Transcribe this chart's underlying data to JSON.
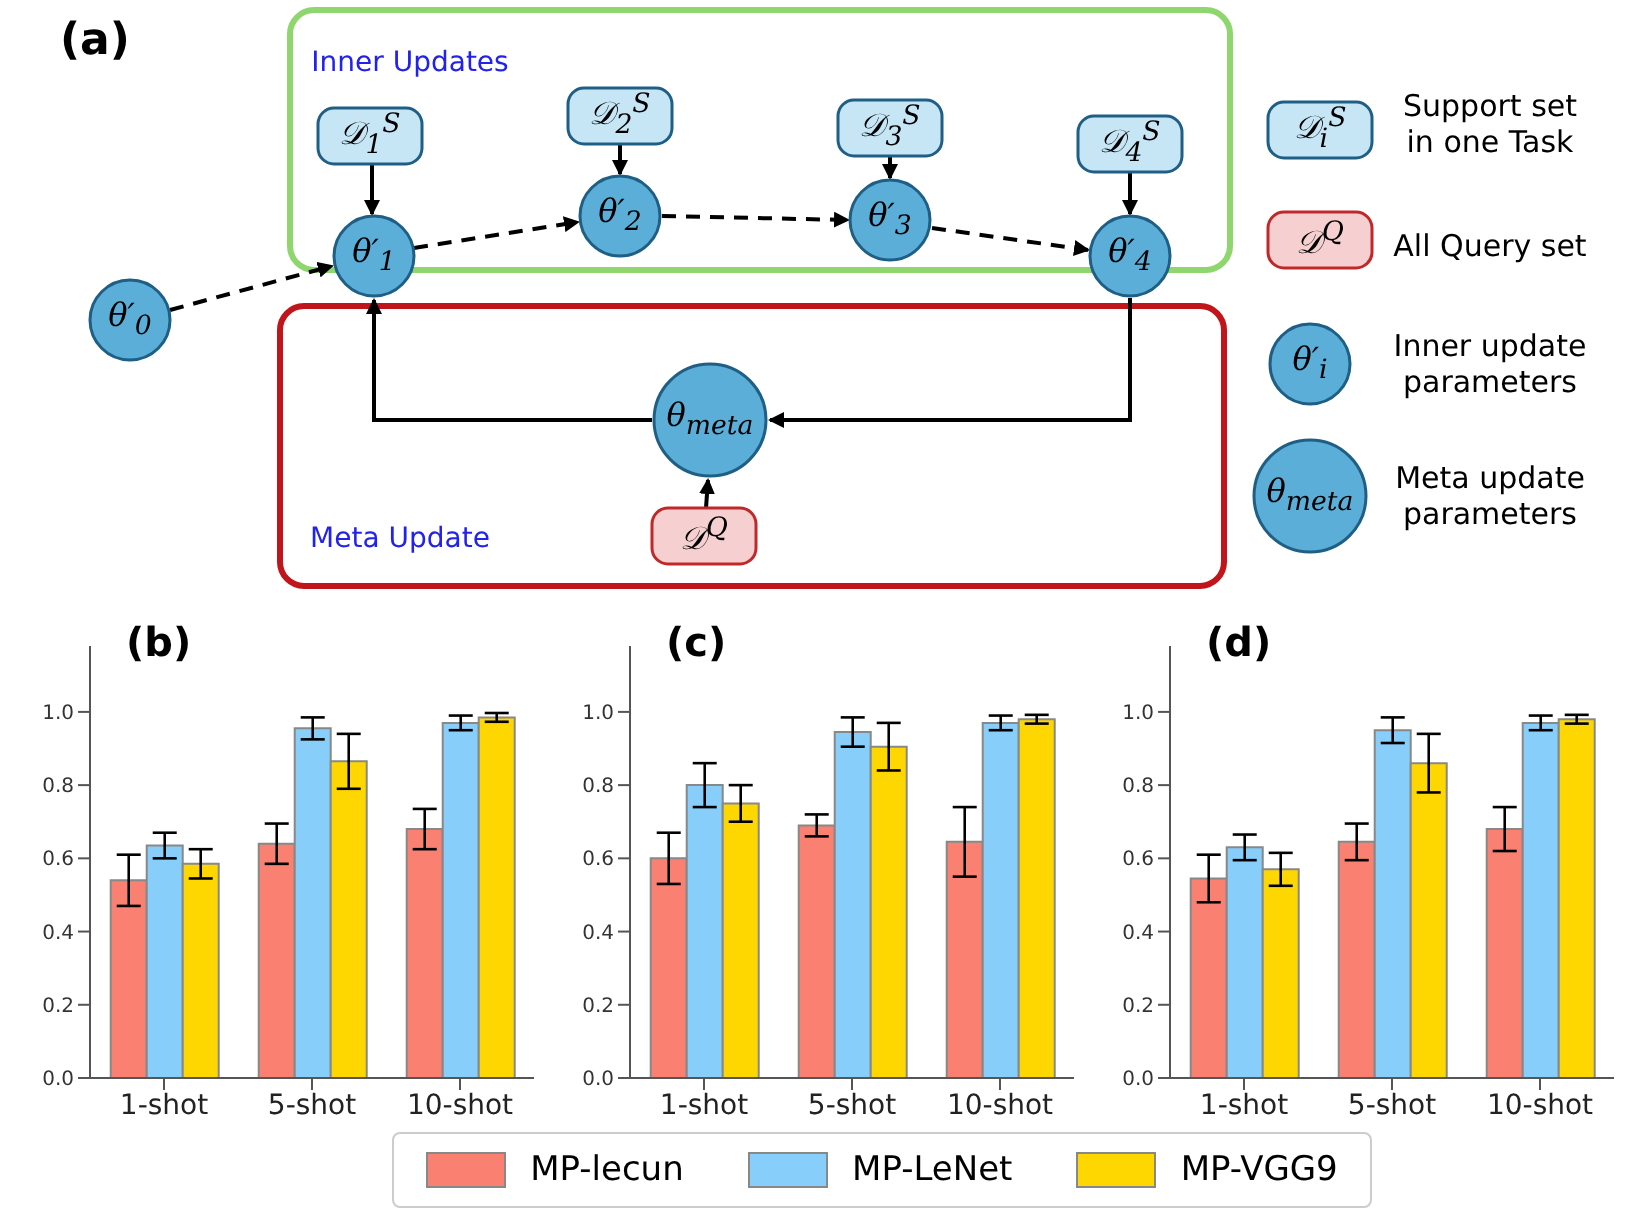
{
  "chart_data": [
    {
      "type": "other",
      "title": "(a)",
      "annotations": [
        "Inner Updates",
        "Meta Update",
        "θ′$_{0}$",
        "θ′$_{1}$",
        "θ′$_{2}$",
        "θ′$_{3}$",
        "θ′$_{4}$",
        "θ$_{meta}$",
        "𝒟$_{1}$$^{S}$",
        "𝒟$_{2}$$^{S}$",
        "𝒟$_{3}$$^{S}$",
        "𝒟$_{4}$$^{S}$",
        "𝒟$^{Q}$",
        "𝒟$_{i}$$^{S}$",
        "Support set in one Task",
        "𝒟$^{Q}$",
        "All Query set",
        "θ′$_{i}$",
        "Inner update parameters",
        "θ$_{meta}$",
        "Meta update parameters"
      ]
    },
    {
      "type": "bar",
      "title": "(b)",
      "legend": "bottom",
      "categories": [
        "1-shot",
        "5-shot",
        "10-shot"
      ],
      "ylim": [
        0,
        1.18
      ],
      "yticks": [
        {
          "value": 0,
          "label": "0.0"
        },
        {
          "value": 0.2,
          "label": "0.2"
        },
        {
          "value": 0.4,
          "label": "0.4"
        },
        {
          "value": 0.6,
          "label": "0.6"
        },
        {
          "value": 0.8,
          "label": "0.8"
        },
        {
          "value": 1,
          "label": "1.0"
        }
      ],
      "series": [
        {
          "name": "MP-lecun",
          "color": "#fa8072",
          "values": [
            0.54,
            0.64,
            0.68
          ],
          "errors": [
            0.07,
            0.055,
            0.055
          ]
        },
        {
          "name": "MP-LeNet",
          "color": "#87cefa",
          "values": [
            0.635,
            0.955,
            0.97
          ],
          "errors": [
            0.035,
            0.03,
            0.02
          ]
        },
        {
          "name": "MP-VGG9",
          "color": "#ffd700",
          "values": [
            0.585,
            0.865,
            0.985
          ],
          "errors": [
            0.04,
            0.075,
            0.012
          ]
        }
      ]
    },
    {
      "type": "bar",
      "title": "(c)",
      "categories": [
        "1-shot",
        "5-shot",
        "10-shot"
      ],
      "ylim": [
        0,
        1.18
      ],
      "yticks": [
        {
          "value": 0,
          "label": "0.0"
        },
        {
          "value": 0.2,
          "label": "0.2"
        },
        {
          "value": 0.4,
          "label": "0.4"
        },
        {
          "value": 0.6,
          "label": "0.6"
        },
        {
          "value": 0.8,
          "label": "0.8"
        },
        {
          "value": 1,
          "label": "1.0"
        }
      ],
      "series": [
        {
          "color": "#fa8072",
          "values": [
            0.6,
            0.69,
            0.645
          ],
          "errors": [
            0.07,
            0.03,
            0.095
          ]
        },
        {
          "color": "#87cefa",
          "values": [
            0.8,
            0.945,
            0.97
          ],
          "errors": [
            0.06,
            0.04,
            0.02
          ]
        },
        {
          "color": "#ffd700",
          "values": [
            0.75,
            0.905,
            0.98
          ],
          "errors": [
            0.05,
            0.065,
            0.012
          ]
        }
      ]
    },
    {
      "type": "bar",
      "title": "(d)",
      "categories": [
        "1-shot",
        "5-shot",
        "10-shot"
      ],
      "ylim": [
        0,
        1.18
      ],
      "yticks": [
        {
          "value": 0,
          "label": "0.0"
        },
        {
          "value": 0.2,
          "label": "0.2"
        },
        {
          "value": 0.4,
          "label": "0.4"
        },
        {
          "value": 0.6,
          "label": "0.6"
        },
        {
          "value": 0.8,
          "label": "0.8"
        },
        {
          "value": 1,
          "label": "1.0"
        }
      ],
      "series": [
        {
          "color": "#fa8072",
          "values": [
            0.545,
            0.645,
            0.68
          ],
          "errors": [
            0.065,
            0.05,
            0.06
          ]
        },
        {
          "color": "#87cefa",
          "values": [
            0.63,
            0.95,
            0.97
          ],
          "errors": [
            0.035,
            0.035,
            0.02
          ]
        },
        {
          "color": "#ffd700",
          "values": [
            0.57,
            0.86,
            0.98
          ],
          "errors": [
            0.045,
            0.08,
            0.012
          ]
        }
      ]
    }
  ]
}
